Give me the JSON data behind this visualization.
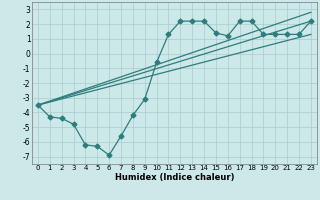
{
  "xlabel": "Humidex (Indice chaleur)",
  "background_color": "#cce8e8",
  "grid_color": "#aacccc",
  "line_color": "#2e7d7d",
  "xlim": [
    -0.5,
    23.5
  ],
  "ylim": [
    -7.5,
    3.5
  ],
  "xticks": [
    0,
    1,
    2,
    3,
    4,
    5,
    6,
    7,
    8,
    9,
    10,
    11,
    12,
    13,
    14,
    15,
    16,
    17,
    18,
    19,
    20,
    21,
    22,
    23
  ],
  "yticks": [
    -7,
    -6,
    -5,
    -4,
    -3,
    -2,
    -1,
    0,
    1,
    2,
    3
  ],
  "series1_x": [
    0,
    1,
    2,
    3,
    4,
    5,
    6,
    7,
    8,
    9,
    10,
    11,
    12,
    13,
    14,
    15,
    16,
    17,
    18,
    19,
    20,
    21,
    22,
    23
  ],
  "series1_y": [
    -3.5,
    -4.3,
    -4.4,
    -4.8,
    -6.2,
    -6.3,
    -6.9,
    -5.6,
    -4.2,
    -3.1,
    -0.6,
    1.3,
    2.2,
    2.2,
    2.2,
    1.4,
    1.2,
    2.2,
    2.2,
    1.3,
    1.3,
    1.3,
    1.3,
    2.2
  ],
  "series2_x": [
    0,
    23
  ],
  "series2_y": [
    -3.5,
    2.2
  ],
  "series3_x": [
    0,
    23
  ],
  "series3_y": [
    -3.5,
    1.3
  ],
  "series4_x": [
    0,
    23
  ],
  "series4_y": [
    -3.5,
    2.8
  ]
}
